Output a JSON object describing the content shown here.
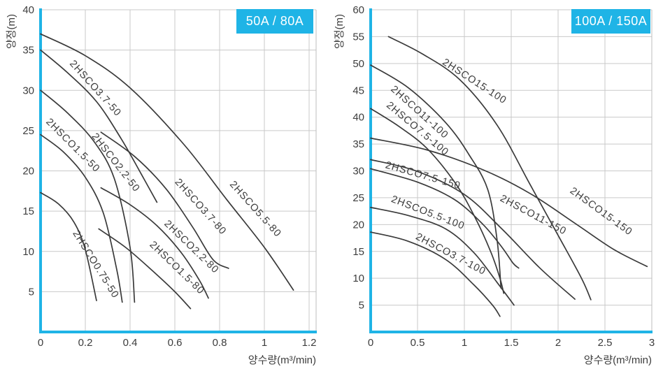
{
  "colors": {
    "accent": "#1fb4e6",
    "grid": "#c9c9c9",
    "border": "#bdbdbd",
    "curve": "#3a3a3a",
    "text": "#3d3d3d",
    "badge_text": "#ffffff"
  },
  "chart_data": [
    {
      "type": "line",
      "title_badge": "50A / 80A",
      "xlabel": "양수량(m³/min)",
      "ylabel": "양정(m)",
      "xlim": [
        0,
        1.23
      ],
      "ylim": [
        0,
        40
      ],
      "grid": true,
      "legend_position": "labels-on-curves",
      "xtick_labels": [
        "0",
        "0.2",
        "0.4",
        "0.6",
        "0.8",
        "1",
        "1.2"
      ],
      "xtick_values": [
        0,
        0.2,
        0.4,
        0.6,
        0.8,
        1,
        1.2
      ],
      "yticks": [
        5,
        10,
        15,
        20,
        25,
        30,
        35,
        40
      ],
      "series": [
        {
          "name": "2HSCO0.75-50",
          "points": [
            [
              0,
              17.3
            ],
            [
              0.08,
              15.9
            ],
            [
              0.15,
              13.6
            ],
            [
              0.2,
              10.2
            ],
            [
              0.25,
              3.9
            ]
          ],
          "label_at": [
            0.235,
            8.2
          ],
          "label_rot": 58
        },
        {
          "name": "2HSCO1.5-50",
          "points": [
            [
              0,
              24.5
            ],
            [
              0.1,
              22.4
            ],
            [
              0.2,
              19.2
            ],
            [
              0.28,
              14.8
            ],
            [
              0.34,
              7.8
            ],
            [
              0.365,
              3.7
            ]
          ],
          "label_at": [
            0.135,
            22.9
          ],
          "label_rot": 45
        },
        {
          "name": "2HSCO2.2-50",
          "points": [
            [
              0,
              30
            ],
            [
              0.12,
              27.2
            ],
            [
              0.24,
              23.6
            ],
            [
              0.33,
              19.0
            ],
            [
              0.4,
              10.5
            ],
            [
              0.42,
              3.7
            ]
          ],
          "label_at": [
            0.325,
            20.8
          ],
          "label_rot": 52
        },
        {
          "name": "2HSCO3.7-50",
          "points": [
            [
              0,
              35
            ],
            [
              0.12,
              32.2
            ],
            [
              0.25,
              28.6
            ],
            [
              0.36,
              24.0
            ],
            [
              0.45,
              19.6
            ],
            [
              0.52,
              16.1
            ]
          ],
          "label_at": [
            0.235,
            30.0
          ],
          "label_rot": 48
        },
        {
          "name": "2HSCO1.5-80",
          "points": [
            [
              0.26,
              12.8
            ],
            [
              0.38,
              10.5
            ],
            [
              0.5,
              7.6
            ],
            [
              0.6,
              5.0
            ],
            [
              0.67,
              2.9
            ]
          ],
          "label_at": [
            0.6,
            7.7
          ],
          "label_rot": 44
        },
        {
          "name": "2HSCO2.2-80",
          "points": [
            [
              0.27,
              17.9
            ],
            [
              0.4,
              15.8
            ],
            [
              0.52,
              13.2
            ],
            [
              0.63,
              9.8
            ],
            [
              0.71,
              6.4
            ],
            [
              0.75,
              4.2
            ]
          ],
          "label_at": [
            0.665,
            10.3
          ],
          "label_rot": 44
        },
        {
          "name": "2HSCO3.7-80",
          "points": [
            [
              0.27,
              24.8
            ],
            [
              0.42,
              21.8
            ],
            [
              0.56,
              17.8
            ],
            [
              0.68,
              13.0
            ],
            [
              0.77,
              9.0
            ],
            [
              0.84,
              7.9
            ]
          ],
          "label_at": [
            0.705,
            15.3
          ],
          "label_rot": 48
        },
        {
          "name": "2HSCO5.5-80",
          "points": [
            [
              0,
              37
            ],
            [
              0.2,
              34.3
            ],
            [
              0.4,
              30.3
            ],
            [
              0.64,
              23.3
            ],
            [
              0.83,
              16.5
            ],
            [
              1.0,
              10.5
            ],
            [
              1.13,
              5.2
            ]
          ],
          "label_at": [
            0.95,
            15.0
          ],
          "label_rot": 48
        }
      ]
    },
    {
      "type": "line",
      "title_badge": "100A / 150A",
      "xlabel": "양수량(m³/min)",
      "ylabel": "양정(m)",
      "xlim": [
        0,
        3
      ],
      "ylim": [
        0,
        60
      ],
      "grid": true,
      "legend_position": "labels-on-curves",
      "xtick_labels": [
        "0",
        "0.5",
        "1",
        "1.5",
        "2",
        "2.5",
        "3"
      ],
      "xtick_values": [
        0,
        0.5,
        1,
        1.5,
        2,
        2.5,
        3
      ],
      "yticks": [
        5,
        10,
        15,
        20,
        25,
        30,
        35,
        40,
        45,
        50,
        55,
        60
      ],
      "series": [
        {
          "name": "2HSCO3.7-100",
          "points": [
            [
              0,
              18.6
            ],
            [
              0.4,
              16.9
            ],
            [
              0.8,
              13.5
            ],
            [
              1.1,
              8.8
            ],
            [
              1.3,
              5.0
            ],
            [
              1.38,
              2.9
            ]
          ],
          "label_at": [
            0.84,
            14.0
          ],
          "label_rot": 28
        },
        {
          "name": "2HSCO5.5-100",
          "points": [
            [
              0,
              23.2
            ],
            [
              0.4,
              21.7
            ],
            [
              0.8,
              19.2
            ],
            [
              1.1,
              14.8
            ],
            [
              1.35,
              9.2
            ],
            [
              1.53,
              5.0
            ]
          ],
          "label_at": [
            0.6,
            21.7
          ],
          "label_rot": 21
        },
        {
          "name": "2HSCO7.5-100",
          "points": [
            [
              0,
              41.6
            ],
            [
              0.3,
              38.3
            ],
            [
              0.6,
              34.2
            ],
            [
              0.9,
              27.8
            ],
            [
              1.1,
              21.8
            ],
            [
              1.28,
              15.0
            ],
            [
              1.38,
              10.0
            ],
            [
              1.42,
              7.2
            ]
          ],
          "label_at": [
            0.48,
            37.4
          ],
          "label_rot": 40
        },
        {
          "name": "2HSCO11-100",
          "points": [
            [
              0,
              49.7
            ],
            [
              0.4,
              45.5
            ],
            [
              0.8,
              39.0
            ],
            [
              1.05,
              33.0
            ],
            [
              1.25,
              26.5
            ],
            [
              1.35,
              17.0
            ],
            [
              1.39,
              8.2
            ]
          ],
          "label_at": [
            0.5,
            40.5
          ],
          "label_rot": 42
        },
        {
          "name": "2HSCO15-100",
          "points": [
            [
              0.19,
              55
            ],
            [
              0.55,
              51.8
            ],
            [
              0.95,
              47.0
            ],
            [
              1.35,
              38.5
            ],
            [
              1.7,
              27.5
            ],
            [
              2.0,
              18.0
            ],
            [
              2.25,
              10.0
            ],
            [
              2.35,
              6.0
            ]
          ],
          "label_at": [
            1.09,
            46.2
          ],
          "label_rot": 33
        },
        {
          "name": "2HSCO7.5-150",
          "points": [
            [
              0,
              30.4
            ],
            [
              0.5,
              27.9
            ],
            [
              0.9,
              24.6
            ],
            [
              1.2,
              20.0
            ],
            [
              1.4,
              15.8
            ],
            [
              1.52,
              12.8
            ],
            [
              1.58,
              11.9
            ]
          ],
          "label_at": [
            0.55,
            28.6
          ],
          "label_rot": 16
        },
        {
          "name": "2HSCO11-150",
          "points": [
            [
              0,
              32.1
            ],
            [
              0.5,
              29.9
            ],
            [
              1.0,
              25.6
            ],
            [
              1.4,
              19.2
            ],
            [
              1.8,
              12.0
            ],
            [
              2.18,
              6.1
            ]
          ],
          "label_at": [
            1.72,
            21.3
          ],
          "label_rot": 28
        },
        {
          "name": "2HSCO15-150",
          "points": [
            [
              0,
              36.1
            ],
            [
              0.6,
              33.9
            ],
            [
              1.2,
              30.2
            ],
            [
              1.7,
              25.8
            ],
            [
              2.2,
              20.0
            ],
            [
              2.6,
              15.3
            ],
            [
              2.95,
              12.2
            ]
          ],
          "label_at": [
            2.44,
            22.0
          ],
          "label_rot": 36
        }
      ]
    }
  ]
}
